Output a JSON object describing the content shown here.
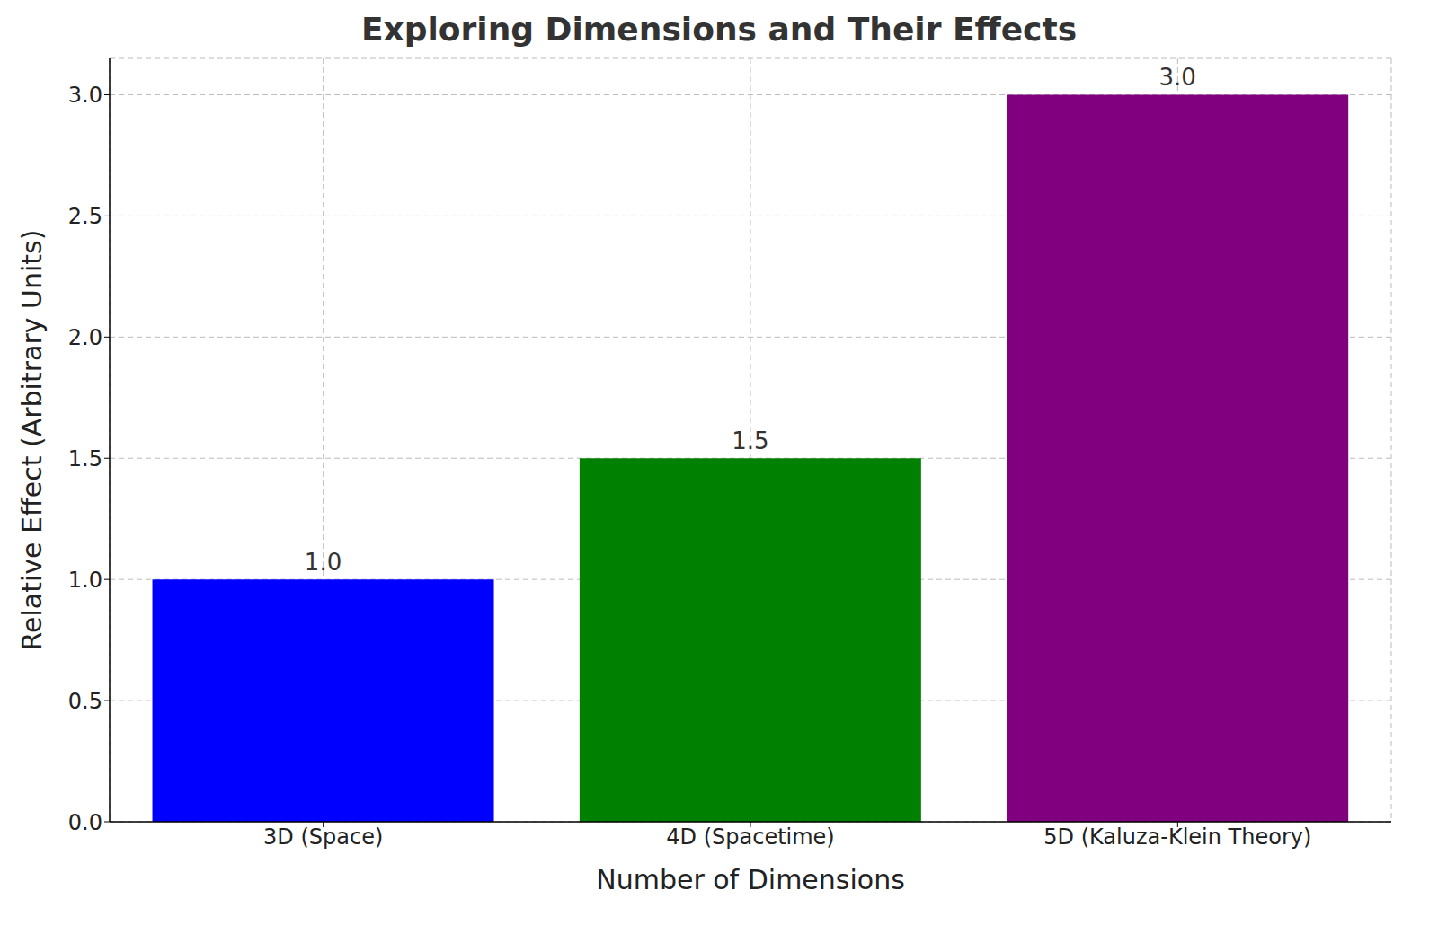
{
  "chart_data": {
    "type": "bar",
    "title": "Exploring Dimensions and Their Effects",
    "x_label": "Number of Dimensions",
    "y_label": "Relative Effect (Arbitrary Units)",
    "categories": [
      "3D (Space)",
      "4D (Spacetime)",
      "5D (Kaluza-Klein Theory)"
    ],
    "values": [
      1,
      1.5,
      3
    ],
    "value_labels": [
      "1.0",
      "1.5",
      "3.0"
    ],
    "colors": [
      "#0000ff",
      "#008000",
      "#800080"
    ],
    "ylim": [
      0,
      3.15
    ],
    "yticks": [
      {
        "value": 0,
        "label": "0.0"
      },
      {
        "value": 0.5,
        "label": "0.5"
      },
      {
        "value": 1,
        "label": "1.0"
      },
      {
        "value": 1.5,
        "label": "1.5"
      },
      {
        "value": 2,
        "label": "2.0"
      },
      {
        "value": 2.5,
        "label": "2.5"
      },
      {
        "value": 3,
        "label": "3.0"
      }
    ],
    "grid": true,
    "data_labels": true
  }
}
